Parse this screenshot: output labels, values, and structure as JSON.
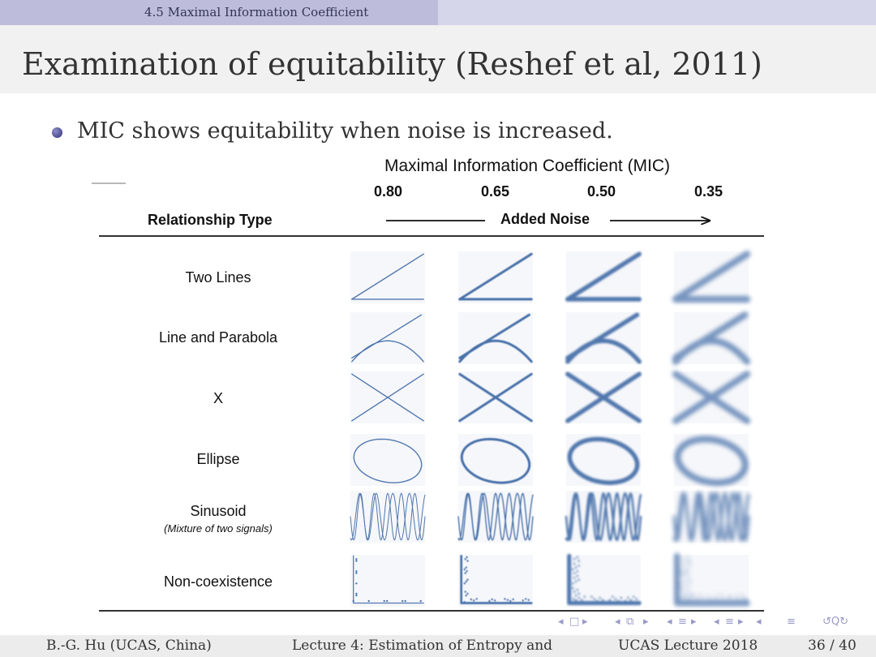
{
  "header": {
    "section": "4.5 Maximal Information Coefficient",
    "title": "Examination of equitability (Reshef et al, 2011)"
  },
  "bullet": {
    "text": "MIC shows equitability when noise is increased."
  },
  "figure": {
    "title": "Maximal Information Coefficient (MIC)",
    "mic_values": [
      "0.80",
      "0.65",
      "0.50",
      "0.35"
    ],
    "relationship_header": "Relationship Type",
    "noise_label": "Added Noise",
    "rows": [
      {
        "label": "Two Lines",
        "sub": ""
      },
      {
        "label": "Line and Parabola",
        "sub": ""
      },
      {
        "label": "X",
        "sub": ""
      },
      {
        "label": "Ellipse",
        "sub": ""
      },
      {
        "label": "Sinusoid",
        "sub": "(Mixture of two signals)"
      },
      {
        "label": "Non-coexistence",
        "sub": ""
      }
    ],
    "plot_color": "#3f6aa6"
  },
  "footer": {
    "author": "B.-G. Hu (UCAS, China)",
    "lecture": "Lecture 4: Estimation of Entropy and",
    "venue": "UCAS Lecture 2018",
    "page": "36 / 40"
  },
  "nav_icons": [
    "frame-prev-icon",
    "frame-next-icon",
    "subsection-prev-icon",
    "subsection-next-icon",
    "section-prev-icon",
    "section-next-icon",
    "outline-icon",
    "search-icon"
  ]
}
